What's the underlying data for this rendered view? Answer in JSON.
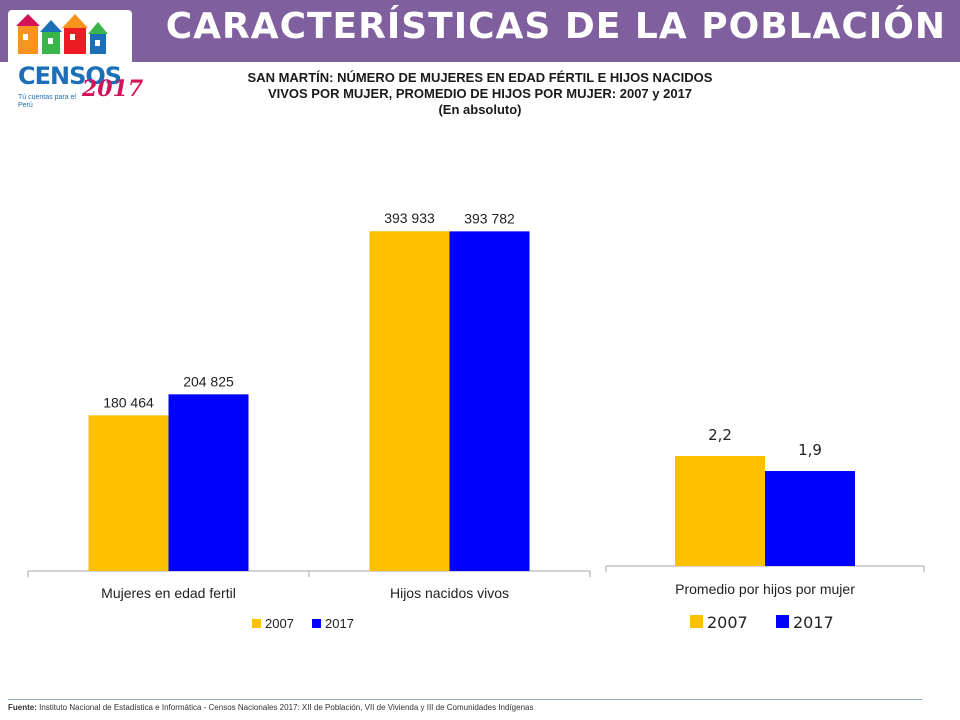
{
  "header": {
    "title": "CARACTERÍSTICAS DE LA POBLACIÓN"
  },
  "logo": {
    "name": "CENSOS",
    "year": "2017",
    "slogan": "Tú cuentas para el Perú"
  },
  "chart_title": {
    "line1": "SAN MARTÍN: NÚMERO DE MUJERES EN EDAD FÉRTIL E HIJOS NACIDOS",
    "line2": "VIVOS POR MUJER, PROMEDIO DE HIJOS POR MUJER: 2007 y 2017",
    "line3": "(En absoluto)"
  },
  "colors": {
    "header": "#7f5f9e",
    "series_2007": "#ffc000",
    "series_2017": "#0000ff",
    "axis": "#a6a6a6"
  },
  "chart_data": [
    {
      "type": "bar",
      "categories": [
        "Mujeres en edad fertil",
        "Hijos nacidos vivos"
      ],
      "series": [
        {
          "name": "2007",
          "values": [
            180464,
            393933
          ],
          "labels": [
            "180 464",
            "393 933"
          ]
        },
        {
          "name": "2017",
          "values": [
            204825,
            393782
          ],
          "labels": [
            "204 825",
            "393 782"
          ]
        }
      ],
      "ylim": [
        0,
        400000
      ],
      "grid": false,
      "legend": "bottom"
    },
    {
      "type": "bar",
      "categories": [
        "Promedio por hijos por mujer"
      ],
      "series": [
        {
          "name": "2007",
          "values": [
            2.2
          ],
          "labels": [
            "2,2"
          ]
        },
        {
          "name": "2017",
          "values": [
            1.9
          ],
          "labels": [
            "1,9"
          ]
        }
      ],
      "ylim": [
        0,
        7.5
      ],
      "grid": false,
      "legend": "bottom"
    }
  ],
  "footer": {
    "source_label": "Fuente:",
    "source_text": " Instituto Nacional de Estadística e Informática - Censos Nacionales 2017: XII de Población, VII de Vivienda y III de Comunidades Indígenas"
  }
}
